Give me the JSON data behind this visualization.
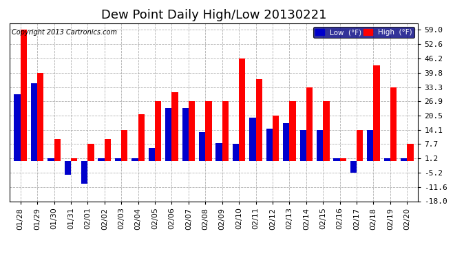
{
  "title": "Dew Point Daily High/Low 20130221",
  "copyright": "Copyright 2013 Cartronics.com",
  "dates": [
    "01/28",
    "01/29",
    "01/30",
    "01/31",
    "02/01",
    "02/02",
    "02/03",
    "02/04",
    "02/05",
    "02/06",
    "02/07",
    "02/08",
    "02/09",
    "02/10",
    "02/11",
    "02/12",
    "02/13",
    "02/14",
    "02/15",
    "02/16",
    "02/17",
    "02/18",
    "02/19",
    "02/20"
  ],
  "high_values": [
    59.0,
    39.8,
    10.0,
    1.2,
    7.7,
    10.0,
    14.1,
    21.0,
    27.0,
    31.0,
    26.9,
    27.0,
    27.0,
    46.2,
    37.0,
    20.5,
    27.0,
    33.3,
    26.9,
    1.2,
    14.1,
    43.0,
    33.3,
    7.7
  ],
  "low_values": [
    30.0,
    35.0,
    1.2,
    -6.0,
    -10.0,
    1.2,
    1.2,
    1.2,
    6.0,
    24.0,
    24.0,
    13.0,
    8.0,
    7.7,
    19.5,
    14.5,
    17.0,
    14.1,
    14.1,
    1.2,
    -5.2,
    14.1,
    1.2,
    1.2
  ],
  "high_color": "#ff0000",
  "low_color": "#0000cc",
  "bg_color": "#ffffff",
  "grid_color": "#b0b0b0",
  "ylim": [
    -18.0,
    62.0
  ],
  "yticks": [
    -18.0,
    -11.6,
    -5.2,
    1.2,
    7.7,
    14.1,
    20.5,
    26.9,
    33.3,
    39.8,
    46.2,
    52.6,
    59.0
  ],
  "bar_width": 0.38,
  "title_fontsize": 13,
  "tick_fontsize": 8,
  "legend_low_label": "Low  (°F)",
  "legend_high_label": "High  (°F)"
}
